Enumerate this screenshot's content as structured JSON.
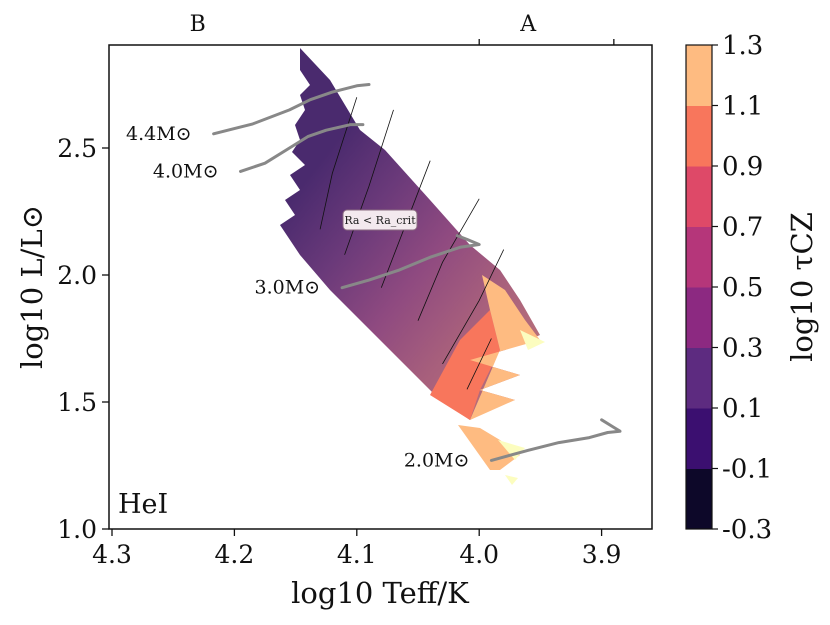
{
  "chart_data": {
    "type": "heatmap",
    "panel_label": "HeI",
    "xlabel": "log10 Teff/K",
    "ylabel": "log10 L/L⊙",
    "xlim": [
      4.3,
      3.85
    ],
    "ylim": [
      1.0,
      2.9
    ],
    "xticks": [
      4.3,
      4.2,
      4.1,
      4.0,
      3.9
    ],
    "xtick_labels": [
      "4.3",
      "4.2",
      "4.1",
      "4.0",
      "3.9"
    ],
    "yticks": [
      1.0,
      1.5,
      2.0,
      2.5
    ],
    "ytick_labels": [
      "1.0",
      "1.5",
      "2.0",
      "2.5"
    ],
    "spectral_types": [
      {
        "label": "B",
        "teff": 4.23
      },
      {
        "label": "A",
        "teff": 3.96
      }
    ],
    "spectral_boundaries": [
      4.0,
      3.89
    ],
    "colorbar": {
      "label": "log10 τCZ",
      "levels": [
        -0.3,
        -0.1,
        0.1,
        0.3,
        0.5,
        0.7,
        0.9,
        1.1,
        1.3
      ],
      "tick_labels": [
        "-0.3",
        "-0.1",
        "0.1",
        "0.3",
        "0.5",
        "0.7",
        "0.9",
        "1.1",
        "1.3"
      ],
      "colors": [
        "#0d0829",
        "#3b0f70",
        "#5d2b80",
        "#8c2981",
        "#b5367a",
        "#de4968",
        "#f8765c",
        "#febb81",
        "#fcfdbf"
      ]
    },
    "region_annotation": "Ra < Ra_crit",
    "track_labels": [
      "4.4M⊙",
      "4.0M⊙",
      "3.0M⊙",
      "2.0M⊙"
    ],
    "tracks": [
      {
        "mass": 4.4,
        "label_anchor": [
          4.217,
          2.556
        ],
        "points": [
          [
            4.217,
            2.556
          ],
          [
            4.185,
            2.595
          ],
          [
            4.155,
            2.65
          ],
          [
            4.138,
            2.69
          ],
          [
            4.12,
            2.72
          ],
          [
            4.1,
            2.745
          ],
          [
            4.09,
            2.75
          ]
        ]
      },
      {
        "mass": 4.0,
        "label_anchor": [
          4.195,
          2.408
        ],
        "points": [
          [
            4.195,
            2.408
          ],
          [
            4.175,
            2.44
          ],
          [
            4.155,
            2.5
          ],
          [
            4.14,
            2.545
          ],
          [
            4.125,
            2.57
          ],
          [
            4.105,
            2.592
          ],
          [
            4.095,
            2.592
          ]
        ]
      },
      {
        "mass": 3.0,
        "label_anchor": [
          4.112,
          1.95
        ],
        "points": [
          [
            4.112,
            1.95
          ],
          [
            4.09,
            1.98
          ],
          [
            4.065,
            2.02
          ],
          [
            4.04,
            2.07
          ],
          [
            4.015,
            2.11
          ],
          [
            4.0,
            2.12
          ],
          [
            4.01,
            2.14
          ],
          [
            4.018,
            2.155
          ]
        ]
      },
      {
        "mass": 2.0,
        "label_anchor": [
          3.99,
          1.27
        ],
        "points": [
          [
            3.99,
            1.27
          ],
          [
            3.96,
            1.31
          ],
          [
            3.935,
            1.34
          ],
          [
            3.91,
            1.36
          ],
          [
            3.895,
            1.38
          ],
          [
            3.885,
            1.385
          ],
          [
            3.89,
            1.4
          ],
          [
            3.9,
            1.43
          ]
        ]
      }
    ],
    "contour_boundaries": [
      {
        "level": 0.3,
        "points": [
          [
            4.13,
            2.18
          ],
          [
            4.12,
            2.4
          ],
          [
            4.1,
            2.7
          ]
        ]
      },
      {
        "level": 0.4,
        "points": [
          [
            4.11,
            2.08
          ],
          [
            4.09,
            2.35
          ],
          [
            4.07,
            2.65
          ]
        ]
      },
      {
        "level": 0.5,
        "points": [
          [
            4.08,
            1.95
          ],
          [
            4.06,
            2.2
          ],
          [
            4.04,
            2.45
          ]
        ]
      },
      {
        "level": 0.6,
        "points": [
          [
            4.05,
            1.82
          ],
          [
            4.03,
            2.05
          ],
          [
            4.0,
            2.3
          ]
        ]
      },
      {
        "level": 0.7,
        "points": [
          [
            4.03,
            1.65
          ],
          [
            4.0,
            1.9
          ],
          [
            3.98,
            2.1
          ]
        ]
      },
      {
        "level": 0.8,
        "points": [
          [
            4.01,
            1.55
          ],
          [
            3.99,
            1.75
          ]
        ]
      }
    ]
  }
}
